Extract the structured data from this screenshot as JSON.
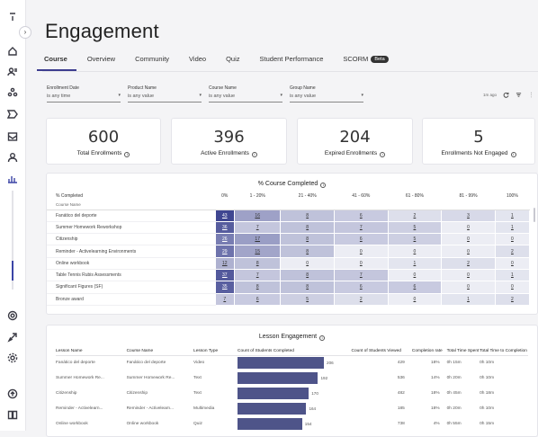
{
  "page": {
    "title": "Engagement"
  },
  "rail": {
    "icons": [
      "menu-icon",
      "home-icon",
      "users-icon",
      "groups-icon",
      "courses-icon",
      "inbox-icon",
      "user-icon",
      "analytics-icon",
      "ai-icon",
      "rocket-icon",
      "settings-icon",
      "upload-icon",
      "book-icon"
    ]
  },
  "tabs": [
    {
      "label": "Course",
      "active": true
    },
    {
      "label": "Overview"
    },
    {
      "label": "Community"
    },
    {
      "label": "Video"
    },
    {
      "label": "Quiz"
    },
    {
      "label": "Student Performance"
    },
    {
      "label": "SCORM",
      "badge": "Beta"
    }
  ],
  "filters": [
    {
      "label": "Enrollment Date",
      "value": "is any time"
    },
    {
      "label": "Product Name",
      "value": "is any value"
    },
    {
      "label": "Course Name",
      "value": "is any value"
    },
    {
      "label": "Group Name",
      "value": "is any value"
    }
  ],
  "toolbar": {
    "age": "1m ago"
  },
  "stats": [
    {
      "value": "600",
      "label": "Total Enrollments"
    },
    {
      "value": "396",
      "label": "Active Enrollments"
    },
    {
      "value": "204",
      "label": "Expired Enrollments"
    },
    {
      "value": "5",
      "label": "Enrollments Not Engaged"
    }
  ],
  "heatmap": {
    "title": "% Course Completed",
    "corner": "% Completed",
    "subheader": "Course Name",
    "columns": [
      "0%",
      "1 - 20%",
      "21 - 40%",
      "41 - 60%",
      "61 - 80%",
      "81 - 99%",
      "100%"
    ],
    "rows": [
      {
        "name": "Fanático del deporte",
        "values": [
          "43",
          "16",
          "8",
          "6",
          "2",
          "3",
          "1"
        ]
      },
      {
        "name": "Summer Homework Reworkshop",
        "values": [
          "36",
          "7",
          "8",
          "7",
          "5",
          "0",
          "1"
        ]
      },
      {
        "name": "Citizenship",
        "values": [
          "26",
          "17",
          "8",
          "6",
          "5",
          "0",
          "0"
        ]
      },
      {
        "name": "Reminder - Activelearning Environments",
        "values": [
          "29",
          "15",
          "8",
          "0",
          "0",
          "0",
          "2"
        ]
      },
      {
        "name": "Online workbook",
        "values": [
          "12",
          "8",
          "0",
          "0",
          "1",
          "2",
          "0"
        ]
      },
      {
        "name": "Table Tennis Rubis Assessments",
        "values": [
          "37",
          "7",
          "8",
          "7",
          "0",
          "0",
          "1"
        ]
      },
      {
        "name": "Significant Figures (SF)",
        "values": [
          "35",
          "8",
          "8",
          "6",
          "6",
          "0",
          "0"
        ]
      },
      {
        "name": "Bronze award",
        "values": [
          "7",
          "6",
          "5",
          "2",
          "0",
          "1",
          "2"
        ]
      }
    ]
  },
  "lesson": {
    "title": "Lesson Engagement",
    "columns": [
      "Lesson Name",
      "Course Name",
      "Lesson Type",
      "Count of Students Completed",
      "Count of Students Viewed",
      "Completion rate",
      "Total Time Spent",
      "Total Time to Completion"
    ],
    "rows": [
      {
        "lesson": "Fanático del deporte",
        "course": "Fanático del deporte",
        "type": "Video",
        "completed": 206,
        "viewed": "429",
        "rate": "18%",
        "spent": "0h 15m",
        "to": "0h 10m"
      },
      {
        "lesson": "Summer Homework Re...",
        "course": "Summer Homework Re...",
        "type": "Text",
        "completed": 192,
        "viewed": "536",
        "rate": "14%",
        "spent": "0h 20m",
        "to": "0h 10m"
      },
      {
        "lesson": "Citizenship",
        "course": "Citizenship",
        "type": "Text",
        "completed": 170,
        "viewed": "482",
        "rate": "18%",
        "spent": "0h 45m",
        "to": "0h 18m"
      },
      {
        "lesson": "Reminder - Activelearn...",
        "course": "Reminder - Activelearn...",
        "type": "Multimedia",
        "completed": 164,
        "viewed": "185",
        "rate": "18%",
        "spent": "0h 20m",
        "to": "0h 10m"
      },
      {
        "lesson": "Online workbook",
        "course": "Online workbook",
        "type": "Quiz",
        "completed": 154,
        "viewed": "738",
        "rate": "4%",
        "spent": "0h 55m",
        "to": "0h 15m"
      }
    ]
  },
  "colors": {
    "accent": "#3b44a6",
    "heat_dark": "#3f4691",
    "bar": "#4e5489"
  }
}
